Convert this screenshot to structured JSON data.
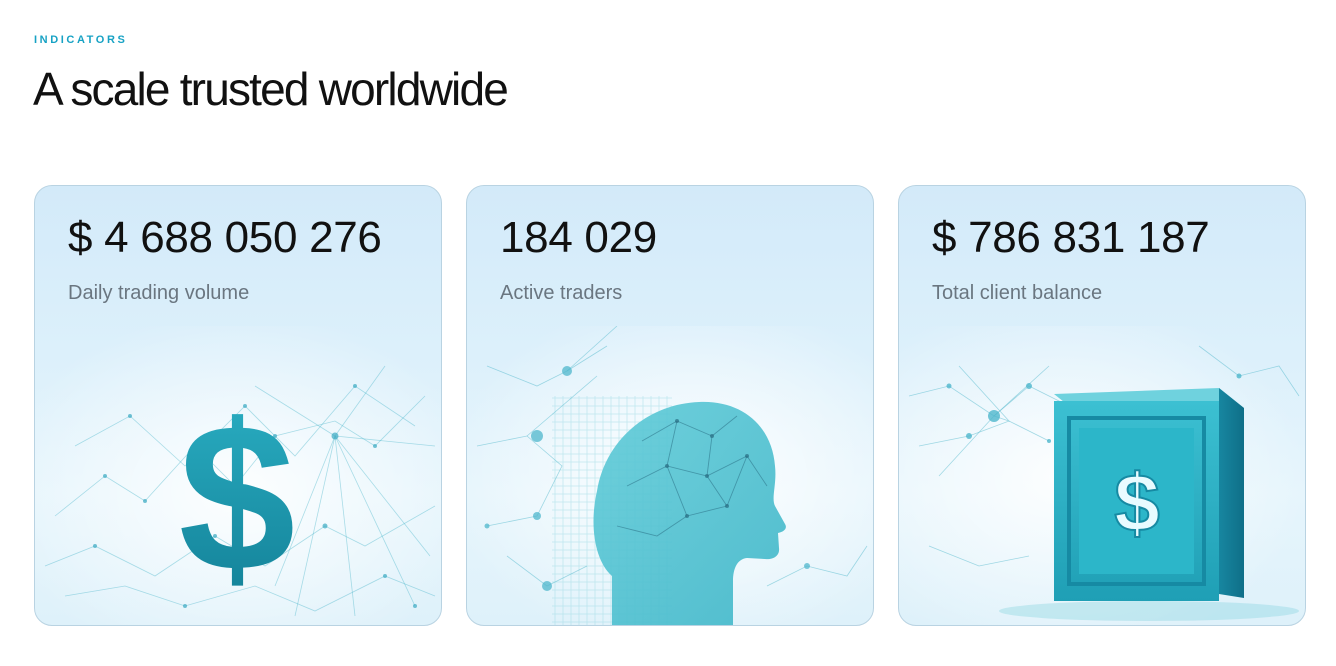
{
  "section": {
    "eyebrow": "INDICATORS",
    "title": "A scale trusted worldwide"
  },
  "cards": [
    {
      "value": "$ 4 688 050 276",
      "label": "Daily trading volume",
      "illustration": "dollar-sign-network-icon"
    },
    {
      "value": "184 029",
      "label": "Active traders",
      "illustration": "ai-head-network-icon"
    },
    {
      "value": "$ 786 831 187",
      "label": "Total client balance",
      "illustration": "dollar-safe-box-icon"
    }
  ],
  "colors": {
    "accent": "#17a2c4",
    "teal": "#1aa3b5",
    "card_bg": "#d3eaf9",
    "text": "#111111",
    "muted": "#6a7680"
  }
}
